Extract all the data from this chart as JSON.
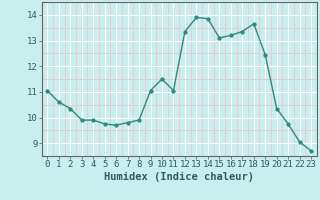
{
  "x": [
    0,
    1,
    2,
    3,
    4,
    5,
    6,
    7,
    8,
    9,
    10,
    11,
    12,
    13,
    14,
    15,
    16,
    17,
    18,
    19,
    20,
    21,
    22,
    23
  ],
  "y": [
    11.05,
    10.6,
    10.35,
    9.9,
    9.9,
    9.75,
    9.7,
    9.8,
    9.9,
    11.05,
    11.5,
    11.05,
    13.35,
    13.9,
    13.85,
    13.1,
    13.2,
    13.35,
    13.65,
    12.45,
    10.35,
    9.75,
    9.05,
    8.7
  ],
  "line_color": "#2e8b7a",
  "marker_color": "#2e8b7a",
  "bg_color": "#c8eeee",
  "grid_major_color": "#ffffff",
  "grid_minor_color": "#e8c8c8",
  "xlabel": "Humidex (Indice chaleur)",
  "xlim": [
    -0.5,
    23.5
  ],
  "ylim": [
    8.5,
    14.5
  ],
  "yticks": [
    9,
    10,
    11,
    12,
    13,
    14
  ],
  "xticks": [
    0,
    1,
    2,
    3,
    4,
    5,
    6,
    7,
    8,
    9,
    10,
    11,
    12,
    13,
    14,
    15,
    16,
    17,
    18,
    19,
    20,
    21,
    22,
    23
  ],
  "tick_fontsize": 6.5,
  "xlabel_fontsize": 7.5,
  "marker_size": 2.5,
  "line_width": 1.0
}
